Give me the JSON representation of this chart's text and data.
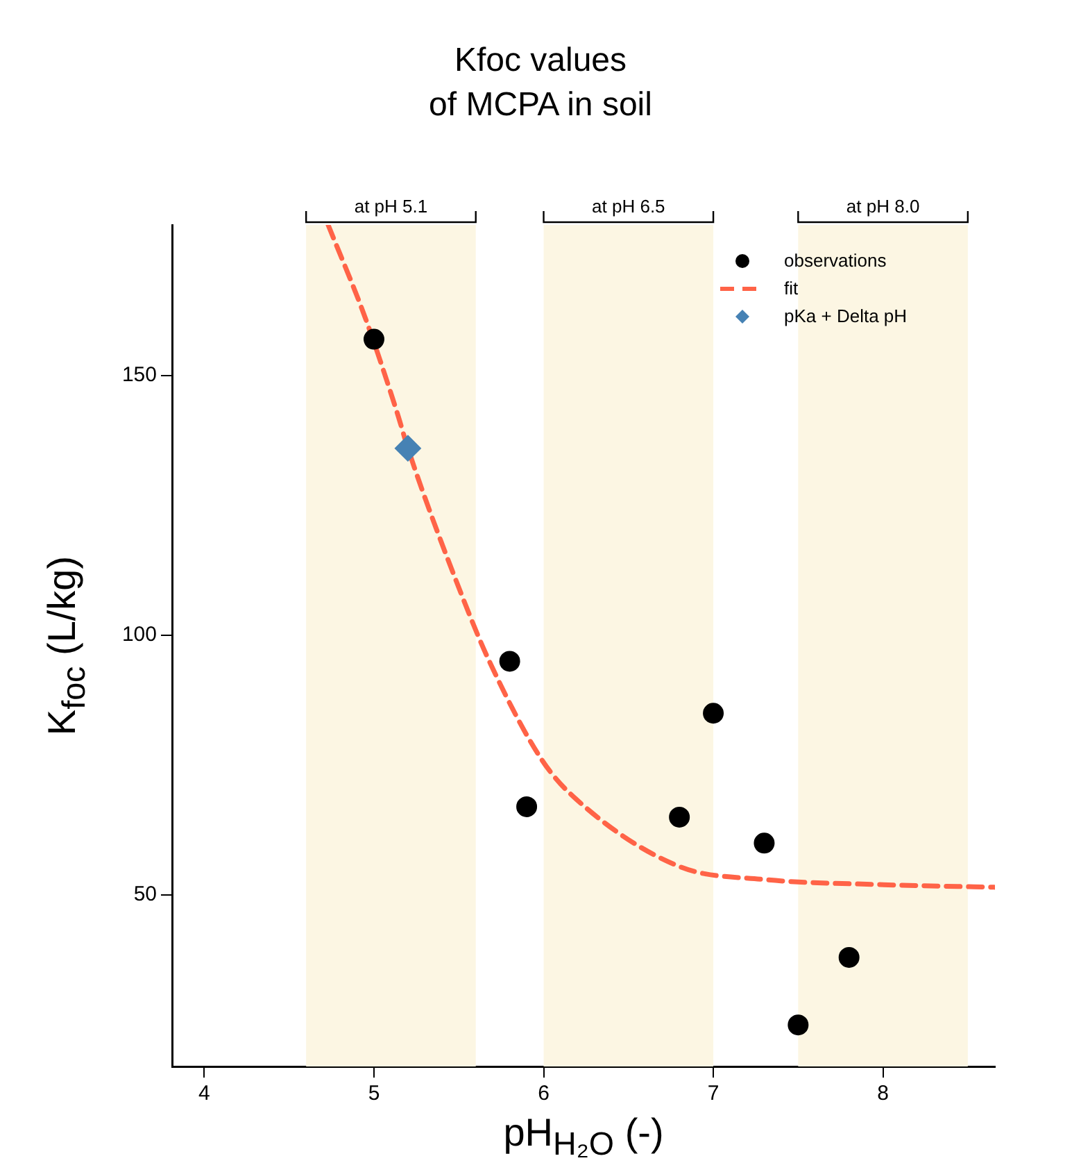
{
  "chart_data": {
    "type": "scatter",
    "title": "Kfoc values\nof MCPA in soil",
    "xlabel": "pH$_{H₂O}$ (-)",
    "ylabel": "K$_{foc}$ (L/kg)",
    "xlim": [
      3.81,
      8.66
    ],
    "xticks": [
      4,
      5,
      6,
      7,
      8
    ],
    "ylim": [
      17,
      179
    ],
    "yticks": [
      50,
      100,
      150
    ],
    "grid": false,
    "legend": "top right",
    "series": [
      {
        "name": "observations",
        "type": "scatter",
        "color": "#000000",
        "marker": "circle",
        "x": [
          5.0,
          5.8,
          5.9,
          6.8,
          7.0,
          7.3,
          7.5,
          7.8
        ],
        "values": [
          157,
          95,
          67,
          65,
          85,
          60,
          25,
          38
        ]
      },
      {
        "name": "fit",
        "type": "line",
        "color": "#ff6347",
        "marker": "none",
        "line_style": "dashed",
        "x": [
          4.73,
          4.95,
          5.14,
          5.2,
          5.52,
          5.68,
          5.99,
          6.19,
          6.8,
          7.3,
          8.0,
          8.66
        ],
        "values": [
          179,
          161,
          142.5,
          136,
          107.5,
          95,
          76,
          68.5,
          55.5,
          53,
          52,
          51.5
        ]
      },
      {
        "name": "pKa + Delta pH",
        "type": "scatter",
        "color": "#4682b4",
        "marker": "diamond",
        "x": [
          5.2
        ],
        "values": [
          136
        ]
      }
    ],
    "bands": [
      {
        "axis": "x",
        "from": 4.6,
        "to": 5.6,
        "label": "at pH 5.1",
        "color": "#fcf6e3"
      },
      {
        "axis": "x",
        "from": 6.0,
        "to": 7.0,
        "label": "at pH 6.5",
        "color": "#fcf6e3"
      },
      {
        "axis": "x",
        "from": 7.5,
        "to": 8.5,
        "label": "at pH 8.0",
        "color": "#fcf6e3"
      }
    ]
  }
}
